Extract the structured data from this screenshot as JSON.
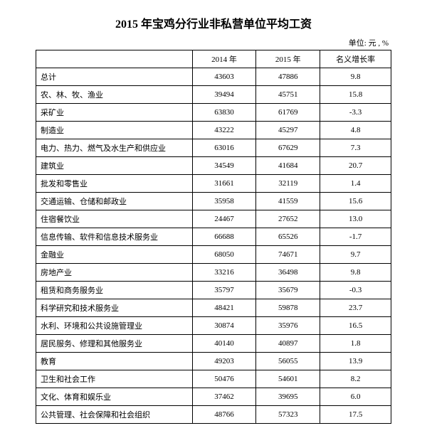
{
  "title": "2015 年宝鸡分行业非私营单位平均工资",
  "unit": "单位: 元 , %",
  "table": {
    "headers": {
      "col1": "",
      "col2": "2014 年",
      "col3": "2015 年",
      "col4": "名义增长率"
    },
    "rows": [
      {
        "label": "总计",
        "y2014": "43603",
        "y2015": "47886",
        "rate": "9.8"
      },
      {
        "label": "农、林、牧、渔业",
        "y2014": "39494",
        "y2015": "45751",
        "rate": "15.8"
      },
      {
        "label": "采矿业",
        "y2014": "63830",
        "y2015": "61769",
        "rate": "-3.3"
      },
      {
        "label": "制造业",
        "y2014": "43222",
        "y2015": "45297",
        "rate": "4.8"
      },
      {
        "label": "电力、热力、燃气及水生产和供应业",
        "y2014": "63016",
        "y2015": "67629",
        "rate": "7.3"
      },
      {
        "label": "建筑业",
        "y2014": "34549",
        "y2015": "41684",
        "rate": "20.7"
      },
      {
        "label": "批发和零售业",
        "y2014": "31661",
        "y2015": "32119",
        "rate": "1.4"
      },
      {
        "label": "交通运输、仓储和邮政业",
        "y2014": "35958",
        "y2015": "41559",
        "rate": "15.6"
      },
      {
        "label": "住宿餐饮业",
        "y2014": "24467",
        "y2015": "27652",
        "rate": "13.0"
      },
      {
        "label": "信息传输、软件和信息技术服务业",
        "y2014": "66688",
        "y2015": "65526",
        "rate": "-1.7"
      },
      {
        "label": "金融业",
        "y2014": "68050",
        "y2015": "74671",
        "rate": "9.7"
      },
      {
        "label": "房地产业",
        "y2014": "33216",
        "y2015": "36498",
        "rate": "9.8"
      },
      {
        "label": "租赁和商务服务业",
        "y2014": "35797",
        "y2015": "35679",
        "rate": "-0.3"
      },
      {
        "label": "科学研究和技术服务业",
        "y2014": "48421",
        "y2015": "59878",
        "rate": "23.7"
      },
      {
        "label": "水利、环境和公共设施管理业",
        "y2014": "30874",
        "y2015": "35976",
        "rate": "16.5"
      },
      {
        "label": "居民服务、修理和其他服务业",
        "y2014": "40140",
        "y2015": "40897",
        "rate": "1.8"
      },
      {
        "label": "教育",
        "y2014": "49203",
        "y2015": "56055",
        "rate": "13.9"
      },
      {
        "label": "卫生和社会工作",
        "y2014": "50476",
        "y2015": "54601",
        "rate": "8.2"
      },
      {
        "label": "文化、体育和娱乐业",
        "y2014": "37462",
        "y2015": "39695",
        "rate": "6.0"
      },
      {
        "label": "公共管理、社会保障和社会组织",
        "y2014": "48766",
        "y2015": "57323",
        "rate": "17.5"
      }
    ]
  },
  "styles": {
    "background_color": "#ffffff",
    "text_color": "#000000",
    "border_color": "#000000",
    "title_fontsize": 16,
    "body_fontsize": 11
  }
}
